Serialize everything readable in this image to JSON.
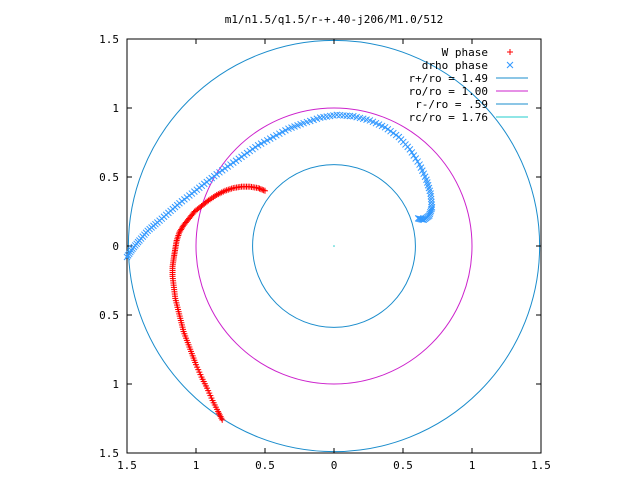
{
  "chart_data": {
    "type": "scatter",
    "title": "m1/n1.5/q1.5/r-+.40-j206/M1.0/512",
    "xlim": [
      -1.5,
      1.5
    ],
    "ylim": [
      -1.5,
      1.5
    ],
    "x_ticks": [
      -1.5,
      -1,
      -0.5,
      0,
      0.5,
      1,
      1.5
    ],
    "x_tick_labels": [
      "1.5",
      "1",
      "0.5",
      "0",
      "0.5",
      "1",
      "1.5"
    ],
    "y_ticks": [
      1.5,
      1,
      0.5,
      0,
      -0.5,
      -1,
      -1.5
    ],
    "y_tick_labels": [
      "1.5",
      "1",
      "0.5",
      "0",
      "0.5",
      "1",
      "1.5"
    ],
    "grid": false,
    "legend_position": "top-right",
    "legend": [
      {
        "label": "W phase",
        "marker": "+",
        "color": "#ff0000"
      },
      {
        "label": "drho phase",
        "marker": "x",
        "color": "#3399ff"
      },
      {
        "label": "r+/ro = 1.49",
        "marker": "line",
        "color": "#1a8ccc"
      },
      {
        "label": "ro/ro = 1.00",
        "marker": "line",
        "color": "#cc22cc"
      },
      {
        "label": "r-/ro = .59",
        "marker": "line",
        "color": "#1a8ccc"
      },
      {
        "label": "rc/ro = 1.76",
        "marker": "line",
        "color": "#22cccc"
      }
    ],
    "circles": [
      {
        "name": "r+/ro",
        "radius": 1.49,
        "color": "#1a8ccc"
      },
      {
        "name": "ro/ro",
        "radius": 1.0,
        "color": "#cc22cc"
      },
      {
        "name": "r-/ro",
        "radius": 0.59,
        "color": "#1a8ccc"
      }
    ],
    "series": [
      {
        "name": "W phase",
        "marker": "+",
        "color": "#ff0000",
        "points": [
          [
            -0.81,
            -1.26
          ],
          [
            -0.84,
            -1.2
          ],
          [
            -0.88,
            -1.12
          ],
          [
            -0.92,
            -1.03
          ],
          [
            -0.96,
            -0.95
          ],
          [
            -1.0,
            -0.86
          ],
          [
            -1.03,
            -0.78
          ],
          [
            -1.06,
            -0.7
          ],
          [
            -1.09,
            -0.62
          ],
          [
            -1.11,
            -0.54
          ],
          [
            -1.13,
            -0.46
          ],
          [
            -1.15,
            -0.38
          ],
          [
            -1.16,
            -0.3
          ],
          [
            -1.17,
            -0.22
          ],
          [
            -1.17,
            -0.15
          ],
          [
            -1.16,
            -0.08
          ],
          [
            -1.15,
            -0.02
          ],
          [
            -1.14,
            0.04
          ],
          [
            -1.12,
            0.1
          ],
          [
            -1.09,
            0.15
          ],
          [
            -1.05,
            0.2
          ],
          [
            -1.01,
            0.25
          ],
          [
            -0.96,
            0.29
          ],
          [
            -0.91,
            0.33
          ],
          [
            -0.85,
            0.37
          ],
          [
            -0.79,
            0.4
          ],
          [
            -0.73,
            0.42
          ],
          [
            -0.67,
            0.43
          ],
          [
            -0.61,
            0.43
          ],
          [
            -0.55,
            0.42
          ],
          [
            -0.5,
            0.4
          ]
        ]
      },
      {
        "name": "drho phase",
        "marker": "x",
        "color": "#3399ff",
        "points": [
          [
            -1.5,
            -0.08
          ],
          [
            -1.46,
            -0.02
          ],
          [
            -1.41,
            0.04
          ],
          [
            -1.35,
            0.11
          ],
          [
            -1.28,
            0.17
          ],
          [
            -1.2,
            0.24
          ],
          [
            -1.12,
            0.31
          ],
          [
            -1.03,
            0.38
          ],
          [
            -0.94,
            0.45
          ],
          [
            -0.85,
            0.52
          ],
          [
            -0.75,
            0.59
          ],
          [
            -0.65,
            0.66
          ],
          [
            -0.55,
            0.73
          ],
          [
            -0.44,
            0.79
          ],
          [
            -0.33,
            0.85
          ],
          [
            -0.22,
            0.89
          ],
          [
            -0.1,
            0.93
          ],
          [
            0.02,
            0.95
          ],
          [
            0.14,
            0.94
          ],
          [
            0.26,
            0.91
          ],
          [
            0.37,
            0.86
          ],
          [
            0.47,
            0.79
          ],
          [
            0.55,
            0.7
          ],
          [
            0.62,
            0.59
          ],
          [
            0.67,
            0.48
          ],
          [
            0.7,
            0.38
          ],
          [
            0.71,
            0.28
          ],
          [
            0.69,
            0.22
          ],
          [
            0.65,
            0.19
          ],
          [
            0.61,
            0.2
          ]
        ]
      }
    ]
  }
}
